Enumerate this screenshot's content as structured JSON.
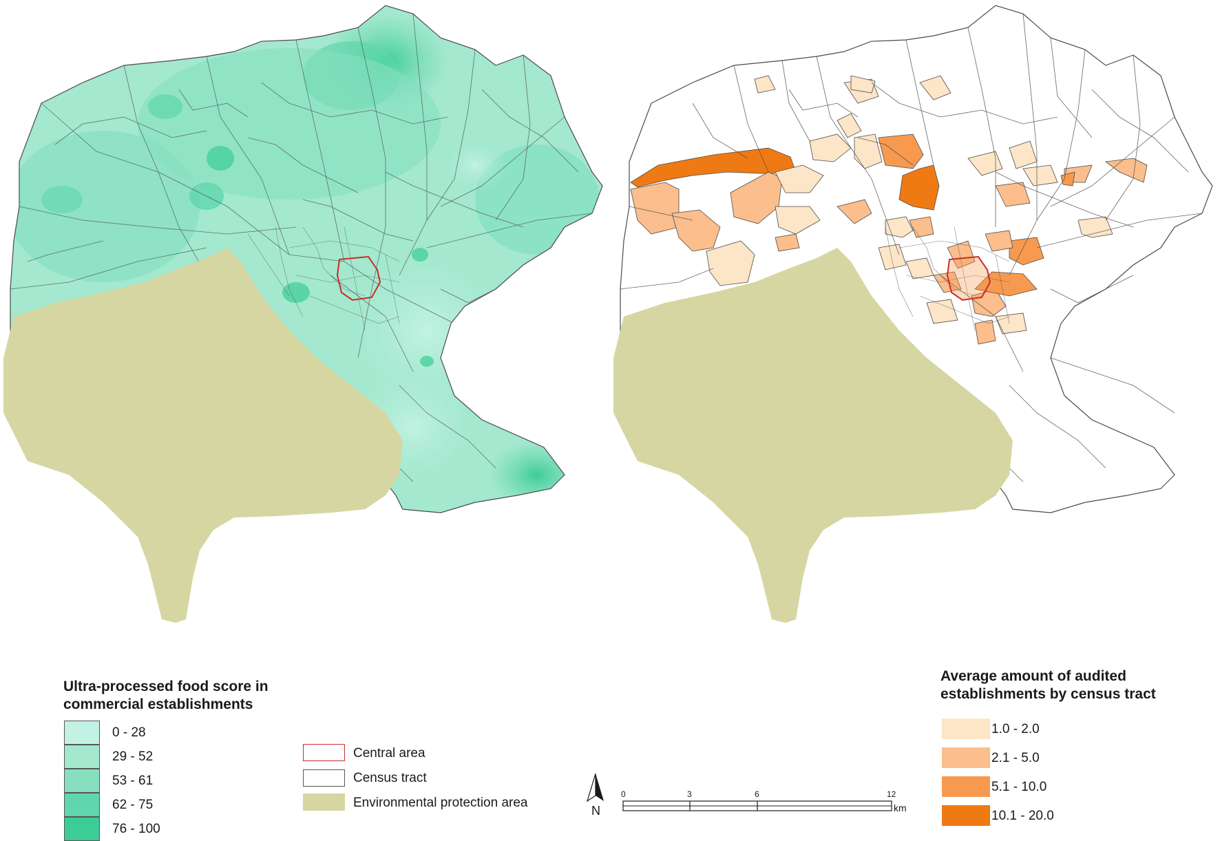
{
  "left_legend": {
    "title_line1": "Ultra-processed food score in",
    "title_line2": "commercial establishments",
    "classes": [
      {
        "label": "0 - 28",
        "color": "#c2f2e3"
      },
      {
        "label": "29 - 52",
        "color": "#a3e8cf"
      },
      {
        "label": "53 - 61",
        "color": "#86e0c0"
      },
      {
        "label": "62 - 75",
        "color": "#5fd6ad"
      },
      {
        "label": "76 - 100",
        "color": "#3ccd96"
      }
    ]
  },
  "middle_legend": {
    "central_area": "Central area",
    "census_tract": "Census tract",
    "protection_area": "Environmental protection area",
    "central_color": "#cc2a2a",
    "protection_color": "#d6d6a2"
  },
  "scale_bar": {
    "north": "N",
    "ticks": [
      "0",
      "3",
      "6",
      "12"
    ],
    "unit": "km"
  },
  "right_legend": {
    "title_line1": "Average amount of audited",
    "title_line2": "establishments by census tract",
    "classes": [
      {
        "label": "1.0 - 2.0",
        "color": "#fde5c8"
      },
      {
        "label": "2.1 - 5.0",
        "color": "#fbbe8c"
      },
      {
        "label": "5.1 - 10.0",
        "color": "#f79a4f"
      },
      {
        "label": "10.1 - 20.0",
        "color": "#ef7a14"
      }
    ]
  }
}
